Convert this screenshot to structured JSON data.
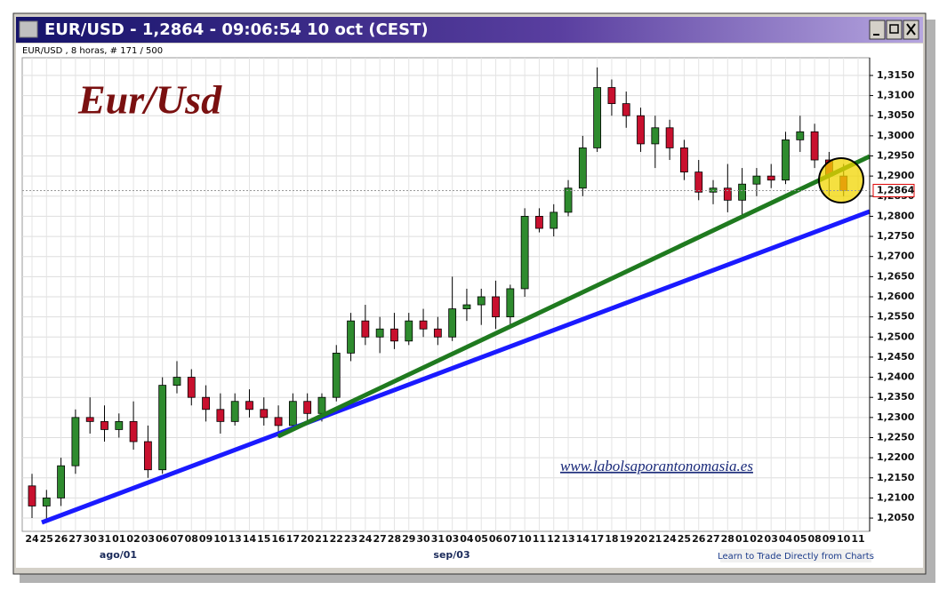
{
  "chart_data": {
    "type": "candlestick",
    "window_title": "EUR/USD - 1,2864 - 09:06:54  10 oct (CEST)",
    "subtitle": "EUR/USD , 8 horas, # 171 / 500",
    "title": "Eur/Usd",
    "watermark": "www.labolsaporantonomasia.es",
    "footer": "Learn to Trade Directly from Charts",
    "month_labels": [
      "ago/01",
      "sep/03"
    ],
    "last_price": {
      "value": 1.2864,
      "label": "1,2864"
    },
    "up_color": "#2e8b2e",
    "down_color": "#c8102e",
    "grid": true,
    "categories": [
      "24",
      "25",
      "26",
      "27",
      "30",
      "31",
      "01",
      "02",
      "03",
      "06",
      "07",
      "08",
      "09",
      "10",
      "13",
      "14",
      "15",
      "16",
      "17",
      "20",
      "21",
      "22",
      "23",
      "24",
      "27",
      "28",
      "29",
      "30",
      "31",
      "03",
      "04",
      "05",
      "06",
      "07",
      "10",
      "11",
      "12",
      "13",
      "14",
      "17",
      "18",
      "19",
      "20",
      "21",
      "24",
      "25",
      "26",
      "27",
      "28",
      "01",
      "02",
      "03",
      "04",
      "05",
      "08",
      "09",
      "10",
      "11"
    ],
    "open": [
      1.213,
      1.208,
      1.21,
      1.218,
      1.23,
      1.229,
      1.227,
      1.229,
      1.224,
      1.217,
      1.238,
      1.24,
      1.235,
      1.232,
      1.229,
      1.234,
      1.232,
      1.23,
      1.228,
      1.234,
      1.231,
      1.235,
      1.246,
      1.254,
      1.25,
      1.252,
      1.249,
      1.254,
      1.252,
      1.25,
      1.257,
      1.258,
      1.26,
      1.255,
      1.262,
      1.28,
      1.277,
      1.281,
      1.287,
      1.297,
      1.312,
      1.308,
      1.305,
      1.298,
      1.302,
      1.297,
      1.291,
      1.286,
      1.287,
      1.284,
      1.288,
      1.29,
      1.289,
      1.299,
      1.301,
      1.294,
      1.29,
      null
    ],
    "high": [
      1.216,
      1.212,
      1.22,
      1.232,
      1.235,
      1.233,
      1.231,
      1.234,
      1.228,
      1.24,
      1.244,
      1.242,
      1.238,
      1.236,
      1.236,
      1.237,
      1.235,
      1.233,
      1.236,
      1.236,
      1.236,
      1.248,
      1.256,
      1.258,
      1.255,
      1.256,
      1.256,
      1.257,
      1.255,
      1.265,
      1.262,
      1.262,
      1.264,
      1.263,
      1.282,
      1.282,
      1.283,
      1.289,
      1.3,
      1.317,
      1.314,
      1.311,
      1.307,
      1.305,
      1.304,
      1.299,
      1.294,
      1.289,
      1.293,
      1.292,
      1.292,
      1.293,
      1.301,
      1.305,
      1.303,
      1.296,
      1.293,
      null
    ],
    "low": [
      1.205,
      1.204,
      1.208,
      1.216,
      1.226,
      1.224,
      1.225,
      1.222,
      1.215,
      1.216,
      1.236,
      1.233,
      1.229,
      1.226,
      1.228,
      1.23,
      1.228,
      1.225,
      1.227,
      1.229,
      1.229,
      1.234,
      1.244,
      1.248,
      1.246,
      1.247,
      1.248,
      1.25,
      1.248,
      1.249,
      1.254,
      1.253,
      1.252,
      1.253,
      1.26,
      1.276,
      1.275,
      1.28,
      1.285,
      1.296,
      1.305,
      1.302,
      1.296,
      1.292,
      1.294,
      1.289,
      1.284,
      1.283,
      1.281,
      1.28,
      1.285,
      1.287,
      1.288,
      1.296,
      1.292,
      1.285,
      1.285,
      null
    ],
    "close": [
      1.208,
      1.21,
      1.218,
      1.23,
      1.229,
      1.227,
      1.229,
      1.224,
      1.217,
      1.238,
      1.24,
      1.235,
      1.232,
      1.229,
      1.234,
      1.232,
      1.23,
      1.228,
      1.234,
      1.231,
      1.235,
      1.246,
      1.254,
      1.25,
      1.252,
      1.249,
      1.254,
      1.252,
      1.25,
      1.257,
      1.258,
      1.26,
      1.255,
      1.262,
      1.28,
      1.277,
      1.281,
      1.287,
      1.297,
      1.312,
      1.308,
      1.305,
      1.298,
      1.302,
      1.297,
      1.291,
      1.286,
      1.287,
      1.284,
      1.288,
      1.29,
      1.289,
      1.299,
      1.301,
      1.294,
      1.29,
      1.2864,
      null
    ],
    "ylim": [
      1.2017,
      1.3194
    ],
    "yticks": [
      {
        "value": 1.205,
        "label": "1,2050"
      },
      {
        "value": 1.21,
        "label": "1,2100"
      },
      {
        "value": 1.215,
        "label": "1,2150"
      },
      {
        "value": 1.22,
        "label": "1,2200"
      },
      {
        "value": 1.225,
        "label": "1,2250"
      },
      {
        "value": 1.23,
        "label": "1,2300"
      },
      {
        "value": 1.235,
        "label": "1,2350"
      },
      {
        "value": 1.24,
        "label": "1,2400"
      },
      {
        "value": 1.245,
        "label": "1,2450"
      },
      {
        "value": 1.25,
        "label": "1,2500"
      },
      {
        "value": 1.255,
        "label": "1,2550"
      },
      {
        "value": 1.26,
        "label": "1,2600"
      },
      {
        "value": 1.265,
        "label": "1,2650"
      },
      {
        "value": 1.27,
        "label": "1,2700"
      },
      {
        "value": 1.275,
        "label": "1,2750"
      },
      {
        "value": 1.28,
        "label": "1,2800"
      },
      {
        "value": 1.285,
        "label": "1,2850"
      },
      {
        "value": 1.29,
        "label": "1,2900"
      },
      {
        "value": 1.295,
        "label": "1,2950"
      },
      {
        "value": 1.3,
        "label": "1,3000"
      },
      {
        "value": 1.305,
        "label": "1,3050"
      },
      {
        "value": 1.31,
        "label": "1,3100"
      },
      {
        "value": 1.315,
        "label": "1,3150"
      }
    ]
  }
}
